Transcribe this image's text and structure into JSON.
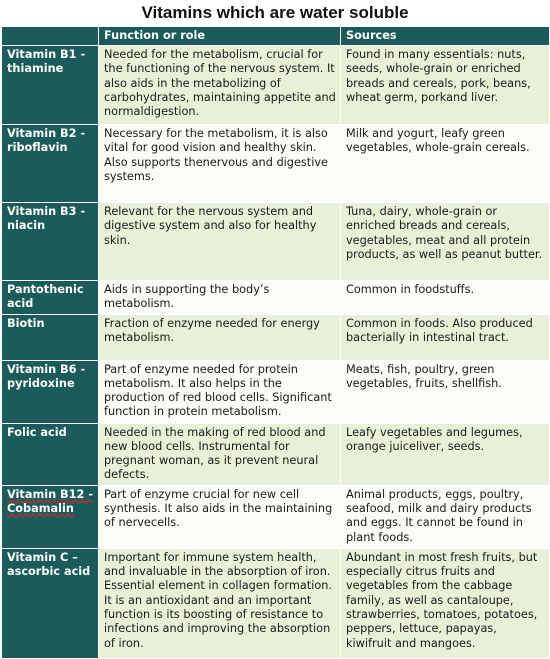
{
  "title": "Vitamins which are water soluble",
  "headers": [
    "",
    "Function or role",
    "Sources"
  ],
  "rows": [
    {
      "name": "Vitamin B1 - thiamine",
      "function": "Needed for the metabolism, crucial for the functioning of the nervous system. It also aids in the metabolizing of carbohydrates, maintaining appetite and normaldigestion.",
      "sources": "Found in many essentials: nuts, seeds, whole-grain or enriched breads and cereals, pork, beans, wheat germ, porkand liver."
    },
    {
      "name": "Vitamin B2 - riboflavin",
      "function": "Necessary for the metabolism, it is also vital for good vision and healthy skin. Also supports thenervous and digestive systems.",
      "sources": "Milk and yogurt, leafy green vegetables, whole-grain cereals."
    },
    {
      "name": "Vitamin B3 - niacin",
      "function": "Relevant for the nervous system and digestive system and also for healthy skin.",
      "sources": "Tuna, dairy, whole-grain or enriched breads and cereals, vegetables, meat and all protein products, as well as peanut butter."
    },
    {
      "name": "Pantothenic acid",
      "function": "Aids in supporting the body’s metabolism.",
      "sources": "Common in foodstuffs."
    },
    {
      "name": "Biotin",
      "function": "Fraction of enzyme needed for energy metabolism.",
      "sources": "Common in foods. Also produced bacterially in intestinal tract."
    },
    {
      "name": "Vitamin B6 - pyridoxine",
      "function": "Part of enzyme needed for protein metabolism. It also helps in the production of red blood cells. Significant function in protein metabolism.",
      "sources": "Meats, fish, poultry, green vegetables, fruits, shellfish."
    },
    {
      "name": "Folic acid",
      "function": "Needed in the making of red blood and new blood cells. Instrumental for pregnant woman, as it prevent neural defects.",
      "sources": "Leafy vegetables and legumes, orange juiceliver, seeds."
    },
    {
      "name": "Vitamin B12 - Cobamalin",
      "function": "Part of enzyme crucial for new cell synthesis. It also aids in the maintaining of nervecells.",
      "sources": "Animal products, eggs, poultry, seafood, milk and dairy products and eggs. It cannot be found in plant foods."
    },
    {
      "name": "Vitamin C – ascorbic acid",
      "function": "Important for immune system health, and invaluable in the absorption of iron. Essential element in collagen formation. It is an antioxidant and an important function is its boosting of resistance to infections and improving the absorption of iron.",
      "sources": "Abundant in most fresh fruits, but especially citrus fruits and vegetables from the cabbage family, as well as cantaloupe, strawberries, tomatoes, potatoes, peppers, lettuce, papayas, kiwifruit and mangoes."
    }
  ],
  "colors": {
    "header_bg": "#1c5b5c",
    "row_light_green": "#e9f0d8",
    "row_white": "#fbfcf6"
  }
}
